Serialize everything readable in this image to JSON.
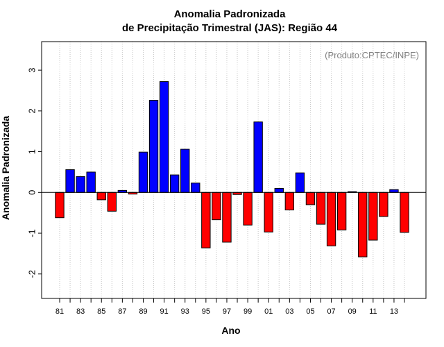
{
  "chart_data": {
    "type": "bar",
    "title": "Anomalia Padronizada",
    "subtitle": "de Precipitação Trimestral (JAS): Região 44",
    "xlabel": "Ano",
    "ylabel": "Anomalia Padronizada",
    "annotation": "(Produto:CPTEC/INPE)",
    "ylim": [
      -2.6,
      3.7
    ],
    "yticks": [
      -2,
      -1,
      0,
      1,
      2,
      3
    ],
    "grid": "vertical dotted",
    "positive_color": "#0000ff",
    "negative_color": "#ff0000",
    "annotation_color": "#808080",
    "categories": [
      "81",
      "82",
      "83",
      "84",
      "85",
      "86",
      "87",
      "88",
      "89",
      "90",
      "91",
      "92",
      "93",
      "94",
      "95",
      "96",
      "97",
      "98",
      "99",
      "00",
      "01",
      "02",
      "03",
      "04",
      "05",
      "06",
      "07",
      "08",
      "09",
      "10",
      "11",
      "12",
      "13",
      "14"
    ],
    "tick_labels": [
      "81",
      "83",
      "85",
      "87",
      "89",
      "91",
      "93",
      "95",
      "97",
      "99",
      "01",
      "03",
      "05",
      "07",
      "09",
      "11",
      "13"
    ],
    "values": [
      -0.62,
      0.56,
      0.39,
      0.5,
      -0.18,
      -0.46,
      0.05,
      -0.04,
      0.99,
      2.26,
      2.72,
      0.43,
      1.06,
      0.23,
      -1.36,
      -0.67,
      -1.22,
      -0.05,
      -0.8,
      1.73,
      -0.97,
      0.1,
      -0.43,
      0.48,
      -0.3,
      -0.78,
      -1.31,
      -0.92,
      0.02,
      -1.58,
      -1.17,
      -0.59,
      0.07,
      -0.98
    ]
  }
}
